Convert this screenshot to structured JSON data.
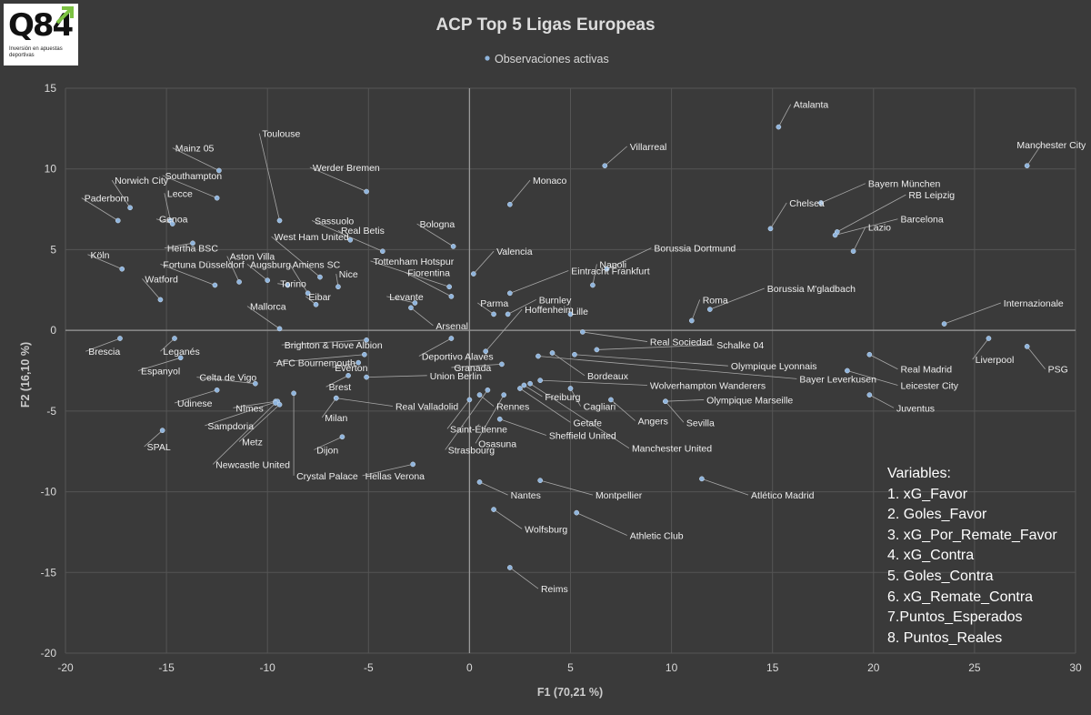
{
  "logo": {
    "text": "Q84",
    "tagline": "Inversión en apuestas deportivas"
  },
  "variables_box": {
    "title": "Variables:",
    "items": [
      "1. xG_Favor",
      "2. Goles_Favor",
      "3. xG_Por_Remate_Favor",
      "4. xG_Contra",
      "5. Goles_Contra",
      "6. xG_Remate_Contra",
      "7.Puntos_Esperados",
      "8. Puntos_Reales"
    ]
  },
  "colors": {
    "background": "#3a3a3a",
    "point": "#8fb4dc",
    "grid": "#555555",
    "axis": "#9a9a9a",
    "text": "#d9d9d9"
  },
  "chart_data": {
    "type": "scatter",
    "title": "ACP Top 5 Ligas Europeas",
    "legend": "Observaciones activas",
    "legend_position": "top",
    "xlabel": "F1 (70,21 %)",
    "ylabel": "F2 (16,10 %)",
    "xlim": [
      -20,
      30
    ],
    "ylim": [
      -20,
      15
    ],
    "xticks": [
      -20,
      -15,
      -10,
      -5,
      0,
      5,
      10,
      15,
      20,
      25,
      30
    ],
    "yticks": [
      -20,
      -15,
      -10,
      -5,
      0,
      5,
      10,
      15
    ],
    "grid": true,
    "points": [
      {
        "label": "Atalanta",
        "x": 15.3,
        "y": 12.6,
        "lx": 15.9,
        "ly": 14.0
      },
      {
        "label": "Manchester City",
        "x": 27.6,
        "y": 10.2,
        "lx": 28.3,
        "ly": 11.5
      },
      {
        "label": "Villarreal",
        "x": 6.7,
        "y": 10.2,
        "lx": 7.8,
        "ly": 11.4
      },
      {
        "label": "Bayern München",
        "x": 17.4,
        "y": 7.9,
        "lx": 19.6,
        "ly": 9.1
      },
      {
        "label": "RB Leipzig",
        "x": 18.2,
        "y": 6.1,
        "lx": 21.6,
        "ly": 8.4
      },
      {
        "label": "Barcelona",
        "x": 18.1,
        "y": 5.9,
        "lx": 21.2,
        "ly": 6.9
      },
      {
        "label": "Lazio",
        "x": 19.0,
        "y": 4.9,
        "lx": 19.6,
        "ly": 6.4
      },
      {
        "label": "Chelsea",
        "x": 14.9,
        "y": 6.3,
        "lx": 15.7,
        "ly": 7.9
      },
      {
        "label": "Monaco",
        "x": 2.0,
        "y": 7.8,
        "lx": 3.0,
        "ly": 9.3
      },
      {
        "label": "Mainz 05",
        "x": -12.4,
        "y": 9.9,
        "lx": -14.7,
        "ly": 11.3
      },
      {
        "label": "Toulouse",
        "x": -9.4,
        "y": 6.8,
        "lx": -10.4,
        "ly": 12.2
      },
      {
        "label": "Werder Bremen",
        "x": -5.1,
        "y": 8.6,
        "lx": -7.9,
        "ly": 10.1
      },
      {
        "label": "Southampton",
        "x": -12.5,
        "y": 8.2,
        "lx": -15.2,
        "ly": 9.6
      },
      {
        "label": "Norwich City",
        "x": -16.8,
        "y": 7.6,
        "lx": -17.7,
        "ly": 9.3
      },
      {
        "label": "Lecce",
        "x": -14.8,
        "y": 6.8,
        "lx": -15.1,
        "ly": 8.5
      },
      {
        "label": "Paderborn",
        "x": -17.4,
        "y": 6.8,
        "lx": -19.2,
        "ly": 8.2
      },
      {
        "label": "Genoa",
        "x": -14.7,
        "y": 6.6,
        "lx": -15.5,
        "ly": 6.9
      },
      {
        "label": "Sassuolo",
        "x": -4.3,
        "y": 4.9,
        "lx": -7.8,
        "ly": 6.8
      },
      {
        "label": "Bologna",
        "x": -0.8,
        "y": 5.2,
        "lx": -2.6,
        "ly": 6.6
      },
      {
        "label": "Real Betis",
        "x": -5.9,
        "y": 5.6,
        "lx": -6.5,
        "ly": 6.2
      },
      {
        "label": "West Ham United",
        "x": -7.4,
        "y": 3.3,
        "lx": -9.8,
        "ly": 5.8
      },
      {
        "label": "Hertha BSC",
        "x": -13.7,
        "y": 5.4,
        "lx": -15.1,
        "ly": 5.1
      },
      {
        "label": "Köln",
        "x": -17.2,
        "y": 3.8,
        "lx": -18.9,
        "ly": 4.7
      },
      {
        "label": "Fortuna Düsseldorf",
        "x": -12.6,
        "y": 2.8,
        "lx": -15.3,
        "ly": 4.1
      },
      {
        "label": "Aston Villa",
        "x": -11.4,
        "y": 3.0,
        "lx": -12.0,
        "ly": 4.6
      },
      {
        "label": "Augsburg",
        "x": -10.0,
        "y": 3.1,
        "lx": -11.0,
        "ly": 4.1
      },
      {
        "label": "Amiens SC",
        "x": -8.0,
        "y": 2.3,
        "lx": -8.9,
        "ly": 4.1
      },
      {
        "label": "Tottenham Hotspur",
        "x": -1.0,
        "y": 2.7,
        "lx": -4.9,
        "ly": 4.3
      },
      {
        "label": "Valencia",
        "x": 0.2,
        "y": 3.5,
        "lx": 1.2,
        "ly": 4.9
      },
      {
        "label": "Eintracht Frankfurt",
        "x": 2.0,
        "y": 2.3,
        "lx": 4.9,
        "ly": 3.7
      },
      {
        "label": "Borussia Dortmund",
        "x": 6.8,
        "y": 3.8,
        "lx": 9.0,
        "ly": 5.1
      },
      {
        "label": "Napoli",
        "x": 6.1,
        "y": 2.8,
        "lx": 6.3,
        "ly": 4.1
      },
      {
        "label": "Watford",
        "x": -15.3,
        "y": 1.9,
        "lx": -16.2,
        "ly": 3.2
      },
      {
        "label": "Torino",
        "x": -9.0,
        "y": 2.8,
        "lx": -9.5,
        "ly": 2.9
      },
      {
        "label": "Nice",
        "x": -6.5,
        "y": 2.7,
        "lx": -6.6,
        "ly": 3.5
      },
      {
        "label": "Fiorentina",
        "x": -0.9,
        "y": 2.1,
        "lx": -3.2,
        "ly": 3.6
      },
      {
        "label": "Eibar",
        "x": -7.6,
        "y": 1.6,
        "lx": -8.1,
        "ly": 2.1
      },
      {
        "label": "Levante",
        "x": -2.7,
        "y": 1.7,
        "lx": -4.1,
        "ly": 2.1
      },
      {
        "label": "Parma",
        "x": 1.2,
        "y": 1.0,
        "lx": 0.4,
        "ly": 1.7
      },
      {
        "label": "Burnley",
        "x": 1.9,
        "y": 1.0,
        "lx": 3.3,
        "ly": 1.9
      },
      {
        "label": "Roma",
        "x": 11.0,
        "y": 0.6,
        "lx": 11.4,
        "ly": 1.9
      },
      {
        "label": "Borussia M'gladbach",
        "x": 11.9,
        "y": 1.3,
        "lx": 14.6,
        "ly": 2.6
      },
      {
        "label": "Internazionale",
        "x": 23.5,
        "y": 0.4,
        "lx": 26.3,
        "ly": 1.7
      },
      {
        "label": "Mallorca",
        "x": -9.4,
        "y": 0.1,
        "lx": -11.0,
        "ly": 1.5
      },
      {
        "label": "Arsenal",
        "x": -2.9,
        "y": 1.4,
        "lx": -1.8,
        "ly": 0.3
      },
      {
        "label": "Lille",
        "x": 5.0,
        "y": 1.0,
        "lx": 4.9,
        "ly": 1.2
      },
      {
        "label": "Hoffenheim",
        "x": 0.8,
        "y": -1.3,
        "lx": 2.6,
        "ly": 1.3
      },
      {
        "label": "Brescia",
        "x": -17.3,
        "y": -0.5,
        "lx": -19.0,
        "ly": -1.3
      },
      {
        "label": "Leganés",
        "x": -14.6,
        "y": -0.5,
        "lx": -15.3,
        "ly": -1.3
      },
      {
        "label": "Brighton & Hove Albion",
        "x": -5.1,
        "y": -0.6,
        "lx": -9.3,
        "ly": -0.9
      },
      {
        "label": "Real Sociedad",
        "x": 5.6,
        "y": -0.1,
        "lx": 8.8,
        "ly": -0.7
      },
      {
        "label": "Schalke 04",
        "x": 6.3,
        "y": -1.2,
        "lx": 12.1,
        "ly": -0.9
      },
      {
        "label": "Espanyol",
        "x": -14.3,
        "y": -1.7,
        "lx": -16.4,
        "ly": -2.5
      },
      {
        "label": "Deportivo Alavés",
        "x": -0.9,
        "y": -0.5,
        "lx": -2.5,
        "ly": -1.6
      },
      {
        "label": "AFC Bournemouth",
        "x": -5.2,
        "y": -1.5,
        "lx": -9.7,
        "ly": -2.0
      },
      {
        "label": "Everton",
        "x": -5.5,
        "y": -2.0,
        "lx": -6.8,
        "ly": -2.3
      },
      {
        "label": "Union Berlin",
        "x": -5.1,
        "y": -2.9,
        "lx": -2.1,
        "ly": -2.8
      },
      {
        "label": "Granada",
        "x": 1.6,
        "y": -2.1,
        "lx": -0.9,
        "ly": -2.3
      },
      {
        "label": "Olympique Lyonnais",
        "x": 5.2,
        "y": -1.5,
        "lx": 12.8,
        "ly": -2.2
      },
      {
        "label": "Bordeaux",
        "x": 4.1,
        "y": -1.4,
        "lx": 5.7,
        "ly": -2.8
      },
      {
        "label": "Bayer Leverkusen",
        "x": 3.4,
        "y": -1.6,
        "lx": 16.2,
        "ly": -3.0
      },
      {
        "label": "Real Madrid",
        "x": 19.8,
        "y": -1.5,
        "lx": 21.2,
        "ly": -2.4
      },
      {
        "label": "Liverpool",
        "x": 25.7,
        "y": -0.5,
        "lx": 24.9,
        "ly": -1.8
      },
      {
        "label": "PSG",
        "x": 27.6,
        "y": -1.0,
        "lx": 28.5,
        "ly": -2.4
      },
      {
        "label": "Celta de Vigo",
        "x": -10.6,
        "y": -3.3,
        "lx": -13.5,
        "ly": -2.9
      },
      {
        "label": "Wolverhampton Wanderers",
        "x": 3.5,
        "y": -3.1,
        "lx": 8.8,
        "ly": -3.4
      },
      {
        "label": "Leicester City",
        "x": 18.7,
        "y": -2.5,
        "lx": 21.2,
        "ly": -3.4
      },
      {
        "label": "Brest",
        "x": -6.0,
        "y": -2.8,
        "lx": -7.1,
        "ly": -3.5
      },
      {
        "label": "Udinese",
        "x": -12.5,
        "y": -3.7,
        "lx": -14.6,
        "ly": -4.5
      },
      {
        "label": "Nîmes",
        "x": -9.6,
        "y": -4.4,
        "lx": -11.7,
        "ly": -4.8
      },
      {
        "label": "Real Valladolid",
        "x": -6.6,
        "y": -4.2,
        "lx": -3.8,
        "ly": -4.7
      },
      {
        "label": "Freiburg",
        "x": 2.7,
        "y": -3.4,
        "lx": 3.6,
        "ly": -4.1
      },
      {
        "label": "Cagliari",
        "x": 5.0,
        "y": -3.6,
        "lx": 5.5,
        "ly": -4.7
      },
      {
        "label": "Rennes",
        "x": 0.5,
        "y": -4.0,
        "lx": 1.2,
        "ly": -4.7
      },
      {
        "label": "Juventus",
        "x": 19.8,
        "y": -4.0,
        "lx": 21.0,
        "ly": -4.8
      },
      {
        "label": "Olympique Marseille",
        "x": 9.7,
        "y": -4.4,
        "lx": 11.6,
        "ly": -4.3
      },
      {
        "label": "Milan",
        "x": -6.6,
        "y": -4.2,
        "lx": -7.3,
        "ly": -5.4
      },
      {
        "label": "Sampdoria",
        "x": -9.5,
        "y": -4.4,
        "lx": -13.1,
        "ly": -5.9
      },
      {
        "label": "Getafe",
        "x": 2.5,
        "y": -3.6,
        "lx": 5.0,
        "ly": -5.7
      },
      {
        "label": "Angers",
        "x": 7.0,
        "y": -4.3,
        "lx": 8.2,
        "ly": -5.6
      },
      {
        "label": "Sevilla",
        "x": 9.7,
        "y": -4.4,
        "lx": 10.6,
        "ly": -5.7
      },
      {
        "label": "Saint-Étienne",
        "x": 0.0,
        "y": -4.3,
        "lx": -1.1,
        "ly": -6.1
      },
      {
        "label": "Sheffield United",
        "x": 1.5,
        "y": -5.5,
        "lx": 3.8,
        "ly": -6.5
      },
      {
        "label": "SPAL",
        "x": -15.2,
        "y": -6.2,
        "lx": -16.1,
        "ly": -7.2
      },
      {
        "label": "Metz",
        "x": -9.4,
        "y": -4.6,
        "lx": -11.4,
        "ly": -6.9
      },
      {
        "label": "Dijon",
        "x": -6.3,
        "y": -6.6,
        "lx": -7.7,
        "ly": -7.4
      },
      {
        "label": "Osasuna",
        "x": 1.7,
        "y": -4.0,
        "lx": 0.3,
        "ly": -7.0
      },
      {
        "label": "Manchester United",
        "x": 3.0,
        "y": -3.3,
        "lx": 7.9,
        "ly": -7.3
      },
      {
        "label": "Strasbourg",
        "x": 0.9,
        "y": -3.7,
        "lx": -1.2,
        "ly": -7.4
      },
      {
        "label": "Newcastle United",
        "x": -9.6,
        "y": -4.5,
        "lx": -12.7,
        "ly": -8.3
      },
      {
        "label": "Crystal Palace",
        "x": -8.7,
        "y": -3.9,
        "lx": -8.7,
        "ly": -9.0
      },
      {
        "label": "Hellas Verona",
        "x": -2.8,
        "y": -8.3,
        "lx": -5.3,
        "ly": -9.0
      },
      {
        "label": "Atlético Madrid",
        "x": 11.5,
        "y": -9.2,
        "lx": 13.8,
        "ly": -10.2
      },
      {
        "label": "Nantes",
        "x": 0.5,
        "y": -9.4,
        "lx": 1.9,
        "ly": -10.2
      },
      {
        "label": "Montpellier",
        "x": 3.5,
        "y": -9.3,
        "lx": 6.1,
        "ly": -10.2
      },
      {
        "label": "Wolfsburg",
        "x": 1.2,
        "y": -11.1,
        "lx": 2.6,
        "ly": -12.3
      },
      {
        "label": "Athletic Club",
        "x": 5.3,
        "y": -11.3,
        "lx": 7.8,
        "ly": -12.7
      },
      {
        "label": "Reims",
        "x": 2.0,
        "y": -14.7,
        "lx": 3.4,
        "ly": -16.0
      }
    ]
  }
}
